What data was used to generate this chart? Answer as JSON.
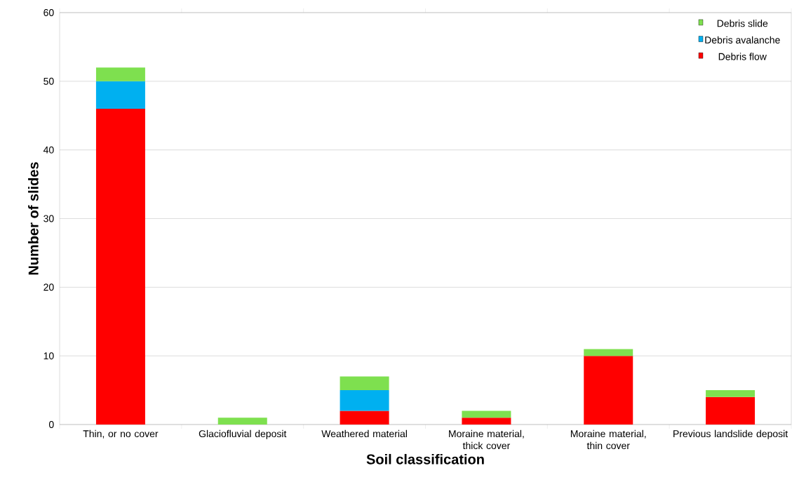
{
  "chart_data": {
    "type": "bar",
    "stacked": true,
    "xlabel": "Soil classification",
    "ylabel": "Number of slides",
    "categories": [
      "Thin, or no cover",
      "Glaciofluvial deposit",
      "Weathered material",
      "Moraine material, thick cover",
      "Moraine material, thin cover",
      "Previous landslide deposit"
    ],
    "series": [
      {
        "name": "Debris flow",
        "color": "#ff0000",
        "values": [
          46,
          0,
          2,
          1,
          10,
          4
        ]
      },
      {
        "name": "Debris avalanche",
        "color": "#00b0f0",
        "values": [
          4,
          0,
          3,
          0,
          0,
          0
        ]
      },
      {
        "name": "Debris slide",
        "color": "#7ee04f",
        "values": [
          2,
          1,
          2,
          1,
          1,
          1
        ]
      }
    ],
    "ylim": [
      0,
      60
    ],
    "yticks": [
      0,
      10,
      20,
      30,
      40,
      50,
      60
    ],
    "grid": "y",
    "legend": "top right"
  }
}
